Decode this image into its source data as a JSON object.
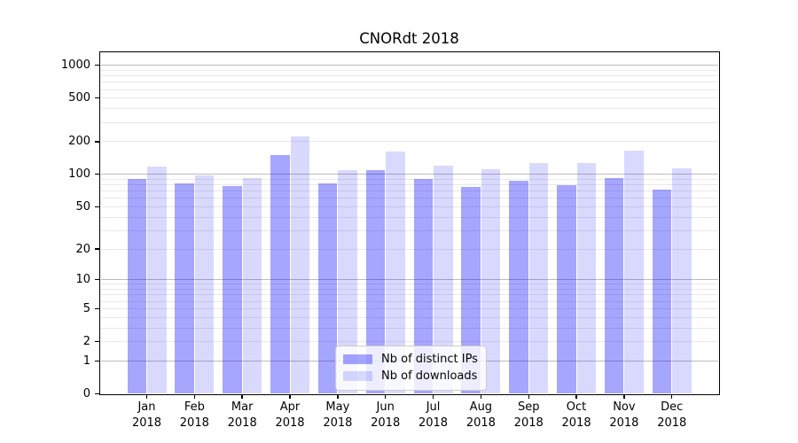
{
  "chart_data": {
    "type": "bar",
    "title": "CNORdt 2018",
    "categories": [
      "Jan",
      "Feb",
      "Mar",
      "Apr",
      "May",
      "Jun",
      "Jul",
      "Aug",
      "Sep",
      "Oct",
      "Nov",
      "Dec"
    ],
    "category_year": "2018",
    "series": [
      {
        "name": "Nb of distinct IPs",
        "color": "rgba(0,0,255,0.35)",
        "values": [
          90,
          82,
          78,
          150,
          83,
          110,
          90,
          77,
          87,
          80,
          92,
          72
        ]
      },
      {
        "name": "Nb of downloads",
        "color": "rgba(0,0,255,0.15)",
        "values": [
          118,
          97,
          93,
          225,
          110,
          162,
          121,
          112,
          128,
          128,
          166,
          114
        ]
      }
    ],
    "yscale": "log1p",
    "yticks": [
      1000,
      500,
      200,
      100,
      50,
      20,
      10,
      5,
      2,
      1,
      0
    ],
    "major_grid_values": [
      1,
      10,
      100,
      1000
    ],
    "minor_grid_values": [
      2,
      3,
      4,
      5,
      6,
      7,
      8,
      9,
      20,
      30,
      40,
      50,
      60,
      70,
      80,
      90,
      200,
      300,
      400,
      500,
      600,
      700,
      800,
      900
    ],
    "ylim": [
      0,
      1270
    ],
    "xlabel": "",
    "ylabel": "",
    "grid": true,
    "legend_position": "lower center"
  },
  "colors": {
    "major_grid": "#bcbcbc",
    "minor_grid": "#e9e9e9",
    "axis": "#000000",
    "background": "#ffffff"
  }
}
